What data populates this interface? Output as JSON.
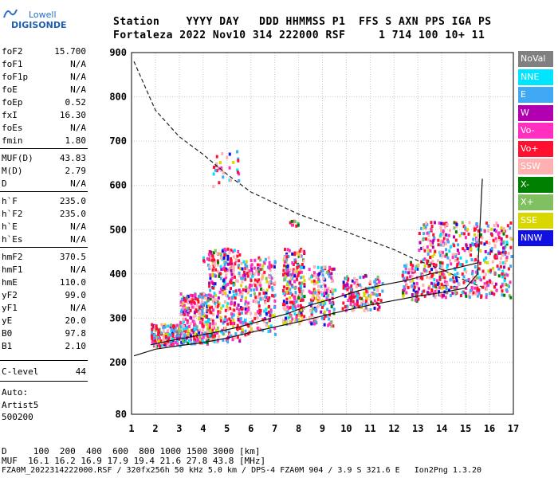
{
  "header": {
    "logo_line1": "Lowell",
    "logo_line2": "DIGISONDE",
    "line1": "Station    YYYY DAY   DDD HHMMSS P1  FFS S AXN PPS IGA PS",
    "line2": "Fortaleza 2022 Nov10 314 222000 RSF     1 714 100 10+ 11"
  },
  "params": [
    {
      "k": "foF2",
      "v": "15.700"
    },
    {
      "k": "foF1",
      "v": "N/A"
    },
    {
      "k": "foF1p",
      "v": "N/A"
    },
    {
      "k": "foE",
      "v": "N/A"
    },
    {
      "k": "foEp",
      "v": "0.52"
    },
    {
      "k": "fxI",
      "v": "16.30"
    },
    {
      "k": "foEs",
      "v": "N/A"
    },
    {
      "k": "fmin",
      "v": "1.80"
    },
    {
      "k": "MUF(D)",
      "v": "43.83"
    },
    {
      "k": "M(D)",
      "v": "2.79"
    },
    {
      "k": "D",
      "v": "N/A"
    },
    {
      "k": "h`F",
      "v": "235.0"
    },
    {
      "k": "h`F2",
      "v": "235.0"
    },
    {
      "k": "h`E",
      "v": "N/A"
    },
    {
      "k": "h`Es",
      "v": "N/A"
    },
    {
      "k": "hmF2",
      "v": "370.5"
    },
    {
      "k": "hmF1",
      "v": "N/A"
    },
    {
      "k": "hmE",
      "v": "110.0"
    },
    {
      "k": "yF2",
      "v": "99.0"
    },
    {
      "k": "yF1",
      "v": "N/A"
    },
    {
      "k": "yE",
      "v": "20.0"
    },
    {
      "k": "B0",
      "v": "97.8"
    },
    {
      "k": "B1",
      "v": "2.10"
    },
    {
      "k": "C-level",
      "v": "44"
    }
  ],
  "auto": {
    "line1": "Auto:",
    "line2": "Artist5",
    "line3": "500200"
  },
  "footer": {
    "d_row": "D     100  200  400  600  800 1000 1500 3000 [km]",
    "muf_row": "MUF  16.1 16.2 16.9 17.9 19.4 21.6 27.8 43.8 [MHz]",
    "info_row": "FZA0M_2022314222000.RSF / 320fx256h 50 kHz 5.0 km / DPS-4 FZA0M 904 / 3.9 S 321.6 E   Ion2Png 1.3.20"
  },
  "legend": [
    {
      "label": "NoVal",
      "color": "#808080"
    },
    {
      "label": "NNE",
      "color": "#00e5ff"
    },
    {
      "label": "E",
      "color": "#3fa9f5"
    },
    {
      "label": "W",
      "color": "#b000b0"
    },
    {
      "label": "Vo-",
      "color": "#ff2fbf"
    },
    {
      "label": "Vo+",
      "color": "#ff1030"
    },
    {
      "label": "SSW",
      "color": "#ffb0b0"
    },
    {
      "label": "X-",
      "color": "#008000"
    },
    {
      "label": "X+",
      "color": "#80c060"
    },
    {
      "label": "SSE",
      "color": "#d8d800"
    },
    {
      "label": "NNW",
      "color": "#1010e0"
    }
  ],
  "chart_data": {
    "type": "scatter",
    "title": "",
    "xlabel": "",
    "ylabel": "",
    "xlim": [
      1,
      17
    ],
    "ylim": [
      80,
      900
    ],
    "x_ticks": [
      "1",
      "2",
      "3",
      "4",
      "5",
      "6",
      "7",
      "8",
      "9",
      "10",
      "11",
      "12",
      "13",
      "14",
      "15",
      "16",
      "17"
    ],
    "y_ticks": [
      "80",
      "200",
      "300",
      "400",
      "500",
      "600",
      "700",
      "800",
      "900"
    ],
    "grid": true,
    "series": [
      {
        "name": "MUF curve (dashed)",
        "type": "line",
        "x": [
          1.1,
          2,
          3,
          4,
          5,
          6,
          7,
          8,
          9,
          10,
          11,
          12,
          13,
          14,
          15,
          15.7
        ],
        "y": [
          880,
          770,
          710,
          670,
          625,
          585,
          560,
          535,
          515,
          495,
          475,
          455,
          430,
          410,
          385,
          370
        ]
      },
      {
        "name": "Lower trace",
        "type": "line",
        "x": [
          1.1,
          2,
          3,
          4,
          5,
          6,
          7,
          8,
          9,
          10,
          11,
          12,
          13,
          14,
          15,
          15.5,
          15.7
        ],
        "y": [
          215,
          230,
          238,
          245,
          255,
          268,
          280,
          292,
          305,
          318,
          330,
          340,
          350,
          358,
          368,
          400,
          615
        ]
      },
      {
        "name": "F2 profile",
        "type": "line",
        "x": [
          1.8,
          2.5,
          3.5,
          4.5,
          5.5,
          6.5,
          7.5,
          8.5,
          9.5,
          10.5,
          11.5,
          12.5,
          13.5,
          14.5,
          15.5
        ],
        "y": [
          240,
          248,
          258,
          268,
          280,
          295,
          310,
          330,
          345,
          362,
          375,
          385,
          400,
          412,
          425
        ]
      }
    ]
  }
}
